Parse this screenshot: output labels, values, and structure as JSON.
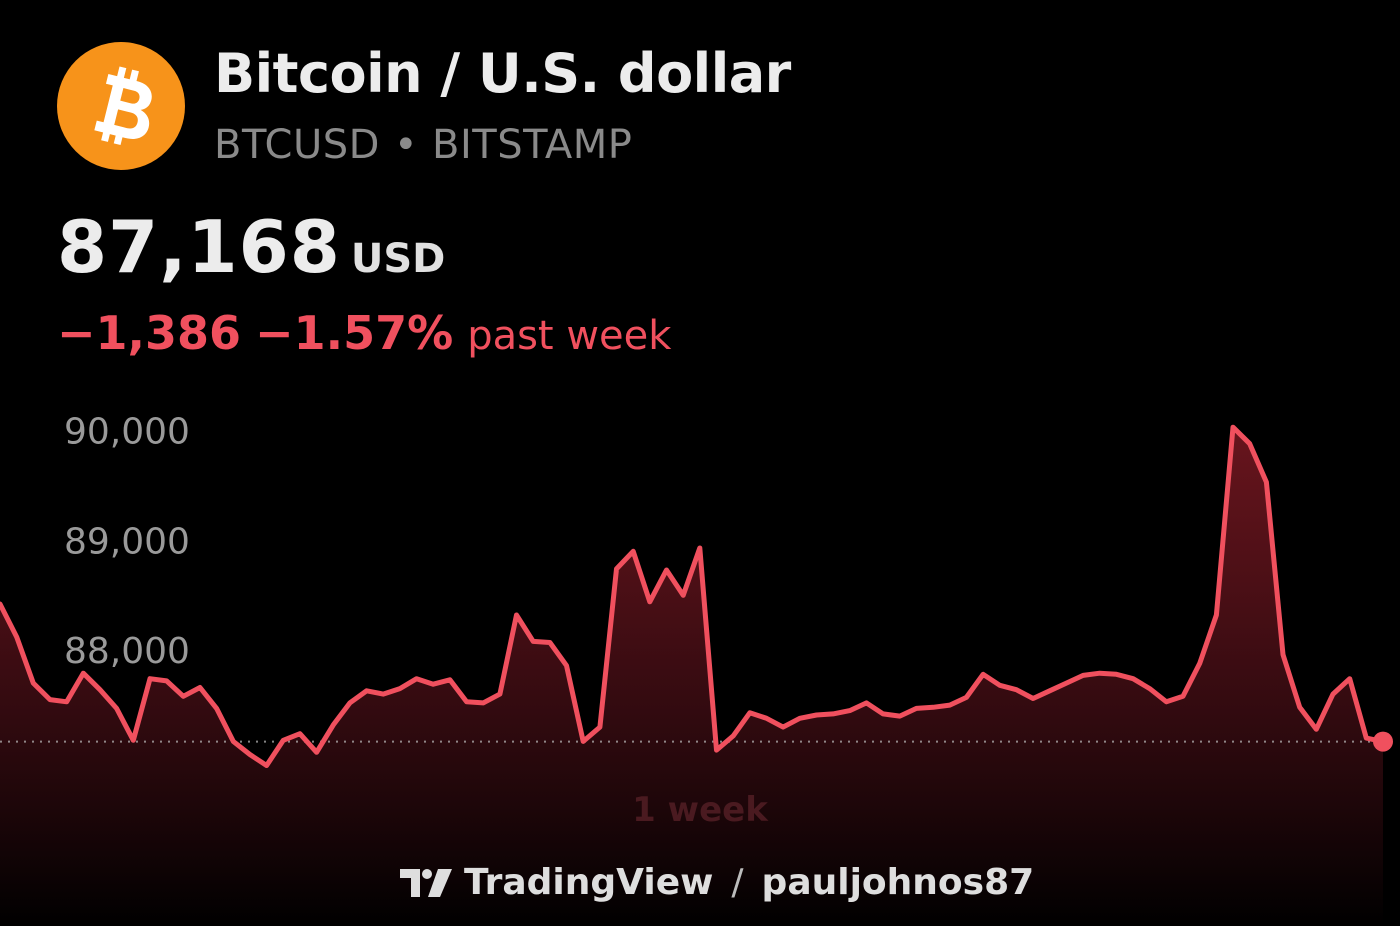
{
  "header": {
    "title": "Bitcoin / U.S. dollar",
    "symbol": "BTCUSD",
    "separator": "•",
    "exchange": "BITSTAMP",
    "logo_icon": "bitcoin-icon",
    "logo_color": "#f7931a"
  },
  "quote": {
    "price": "87,168",
    "currency": "USD",
    "change_abs": "−1,386",
    "change_pct": "−1.57%",
    "change_period": "past week",
    "change_color": "#f0505e"
  },
  "chart_data": {
    "type": "area",
    "title": "",
    "xlabel": "1 week",
    "ylabel": "",
    "ylim": [
      86800,
      90150
    ],
    "yticks": [
      90000,
      89000,
      88000
    ],
    "ytick_labels": [
      "90,000",
      "89,000",
      "88,000"
    ],
    "reference_value": 87168,
    "grid": false,
    "line_color": "#f0505e",
    "series": [
      {
        "values": [
          88420,
          88120,
          87700,
          87550,
          87530,
          87790,
          87640,
          87470,
          87180,
          87740,
          87720,
          87580,
          87660,
          87470,
          87170,
          87050,
          86950,
          87180,
          87240,
          87070,
          87320,
          87520,
          87630,
          87600,
          87650,
          87740,
          87690,
          87730,
          87530,
          87520,
          87600,
          88320,
          88080,
          88070,
          87860,
          87170,
          87300,
          88740,
          88900,
          88440,
          88730,
          88500,
          88930,
          87090,
          87220,
          87430,
          87380,
          87300,
          87380,
          87410,
          87420,
          87450,
          87520,
          87420,
          87400,
          87470,
          87480,
          87500,
          87570,
          87780,
          87680,
          87640,
          87560,
          87630,
          87700,
          87770,
          87790,
          87780,
          87740,
          87650,
          87530,
          87580,
          87880,
          88320,
          90030,
          89880,
          89530,
          87960,
          87480,
          87280,
          87600,
          87740,
          87200,
          87168
        ]
      }
    ]
  },
  "footer": {
    "brand": "TradingView",
    "brand_icon": "tradingview-logo-icon",
    "slash": "/",
    "author": "pauljohnos87"
  }
}
